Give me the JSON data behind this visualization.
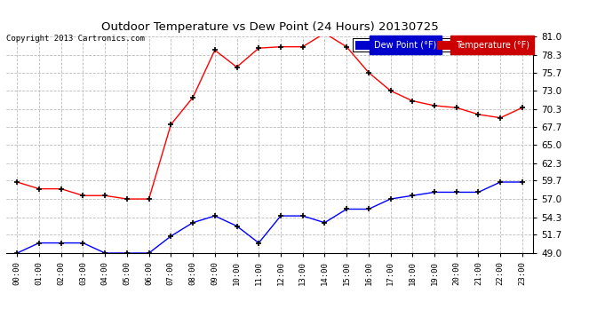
{
  "title": "Outdoor Temperature vs Dew Point (24 Hours) 20130725",
  "copyright": "Copyright 2013 Cartronics.com",
  "hours": [
    "00:00",
    "01:00",
    "02:00",
    "03:00",
    "04:00",
    "05:00",
    "06:00",
    "07:00",
    "08:00",
    "09:00",
    "10:00",
    "11:00",
    "12:00",
    "13:00",
    "14:00",
    "15:00",
    "16:00",
    "17:00",
    "18:00",
    "19:00",
    "20:00",
    "21:00",
    "22:00",
    "23:00"
  ],
  "temperature": [
    59.5,
    58.5,
    58.5,
    57.5,
    57.5,
    57.0,
    57.0,
    68.0,
    72.0,
    79.0,
    76.5,
    79.3,
    79.5,
    79.5,
    81.5,
    79.5,
    75.7,
    73.0,
    71.5,
    70.8,
    70.5,
    69.5,
    69.0,
    70.5
  ],
  "dew_point": [
    49.0,
    50.5,
    50.5,
    50.5,
    49.0,
    49.0,
    49.0,
    51.5,
    53.5,
    54.5,
    53.0,
    50.5,
    54.5,
    54.5,
    53.5,
    55.5,
    55.5,
    57.0,
    57.5,
    58.0,
    58.0,
    58.0,
    59.5,
    59.5
  ],
  "temp_color": "#ff0000",
  "dew_color": "#0000ff",
  "bg_color": "#ffffff",
  "grid_color": "#bbbbbb",
  "ylim_min": 49.0,
  "ylim_max": 81.0,
  "yticks": [
    49.0,
    51.7,
    54.3,
    57.0,
    59.7,
    62.3,
    65.0,
    67.7,
    70.3,
    73.0,
    75.7,
    78.3,
    81.0
  ],
  "legend_dew_label": "Dew Point (°F)",
  "legend_temp_label": "Temperature (°F)",
  "legend_dew_color": "#0000cc",
  "legend_temp_color": "#cc0000"
}
